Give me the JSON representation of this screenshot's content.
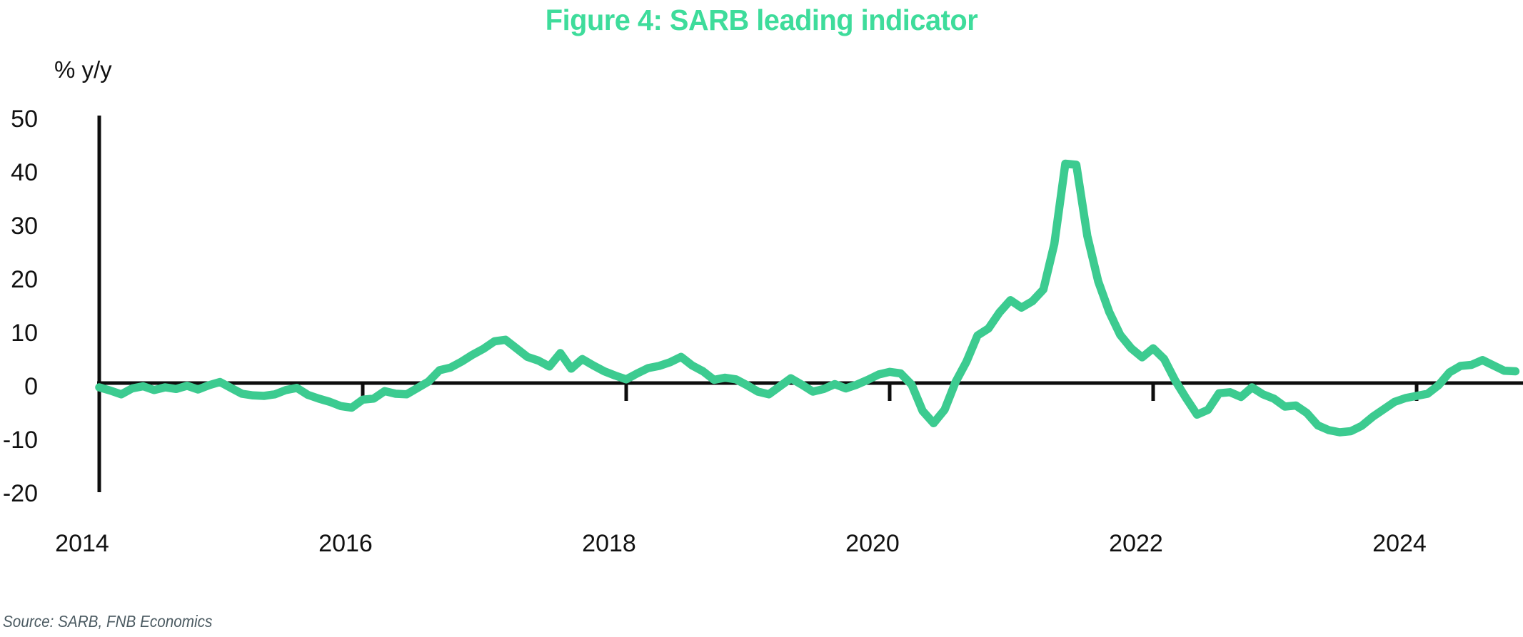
{
  "page": {
    "title": "Figure 4: SARB leading indicator",
    "y_axis_unit": "% y/y",
    "source_note": "Source: SARB, FNB Economics"
  },
  "colors": {
    "title_green": "#3edc9b",
    "line_green": "#3ccb90",
    "axis_black": "#0d0d0d",
    "source_gray": "#4b5a61"
  },
  "chart_data": {
    "type": "line",
    "title": "Figure 4: SARB leading indicator",
    "xlabel": "",
    "ylabel": "% y/y",
    "grid": false,
    "legend": "none",
    "background": "#ffffff",
    "ylim": [
      -20,
      50
    ],
    "yticks": [
      50,
      40,
      30,
      20,
      10,
      0,
      -10,
      -20
    ],
    "xticks": [
      2014,
      2016,
      2018,
      2020,
      2022,
      2024
    ],
    "x_range": [
      "2014-01",
      "2024-10"
    ],
    "frequency": "monthly",
    "zero_axis_line": true,
    "source": "Source: SARB, FNB Economics",
    "series": [
      {
        "name": "SARB leading indicator",
        "unit": "% y/y",
        "start": "2014-01",
        "values": [
          -0.8,
          -1.4,
          -2.1,
          -1.0,
          -0.6,
          -1.3,
          -0.8,
          -1.1,
          -0.5,
          -1.2,
          -0.4,
          0.2,
          -0.9,
          -2.0,
          -2.3,
          -2.4,
          -2.1,
          -1.3,
          -0.9,
          -2.2,
          -2.9,
          -3.5,
          -4.3,
          -4.6,
          -3.1,
          -2.9,
          -1.5,
          -2.0,
          -2.1,
          -0.9,
          0.3,
          2.4,
          2.9,
          4.0,
          5.3,
          6.4,
          7.8,
          8.1,
          6.5,
          4.9,
          4.2,
          3.1,
          5.6,
          2.7,
          4.5,
          3.3,
          2.2,
          1.4,
          0.7,
          1.8,
          2.8,
          3.2,
          3.9,
          4.9,
          3.3,
          2.2,
          0.6,
          1.0,
          0.7,
          -0.4,
          -1.6,
          -2.1,
          -0.6,
          0.9,
          -0.3,
          -1.6,
          -1.1,
          -0.2,
          -1.0,
          -0.3,
          0.6,
          1.6,
          2.1,
          1.8,
          -0.3,
          -5.2,
          -7.5,
          -5.0,
          0.2,
          4.0,
          8.9,
          10.2,
          13.2,
          15.5,
          14.1,
          15.3,
          17.5,
          26.0,
          41.0,
          40.8,
          27.5,
          19.0,
          13.3,
          9.0,
          6.5,
          4.8,
          6.5,
          4.5,
          0.5,
          -2.8,
          -5.9,
          -5.0,
          -1.9,
          -1.7,
          -2.6,
          -0.8,
          -2.1,
          -2.9,
          -4.4,
          -4.2,
          -5.6,
          -7.9,
          -8.8,
          -9.2,
          -9.0,
          -8.0,
          -6.3,
          -4.9,
          -3.5,
          -2.8,
          -2.4,
          -2.0,
          -0.4,
          2.0,
          3.2,
          3.4,
          4.3,
          3.3,
          2.3,
          2.2
        ]
      }
    ]
  }
}
